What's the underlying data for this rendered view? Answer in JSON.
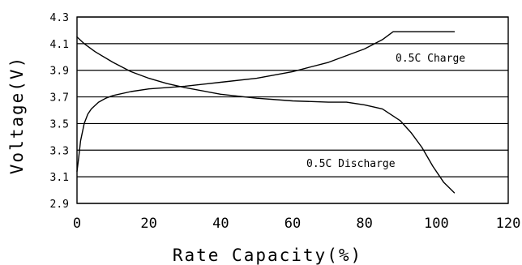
{
  "chart_data": {
    "type": "line",
    "xlabel": "Rate Capacity(%)",
    "ylabel": "Voltage(V)",
    "xlim": [
      0,
      120
    ],
    "ylim": [
      2.9,
      4.3
    ],
    "xticks": [
      "0",
      "20",
      "40",
      "60",
      "80",
      "100",
      "120"
    ],
    "yticks": [
      "4.3",
      "4.1",
      "3.9",
      "3.7",
      "3.5",
      "3.3",
      "3.1",
      "2.9"
    ],
    "grid": "horizontal",
    "series": [
      {
        "name": "0.5C Charge",
        "x": [
          0,
          0.5,
          1,
          2,
          3,
          4,
          6,
          8,
          10,
          15,
          20,
          30,
          40,
          50,
          60,
          70,
          80,
          85,
          88,
          95,
          100,
          105
        ],
        "y": [
          3.14,
          3.25,
          3.37,
          3.5,
          3.57,
          3.61,
          3.66,
          3.69,
          3.71,
          3.74,
          3.76,
          3.78,
          3.81,
          3.84,
          3.89,
          3.96,
          4.06,
          4.13,
          4.19,
          4.19,
          4.19,
          4.19
        ]
      },
      {
        "name": "0.5C Discharge",
        "x": [
          0,
          2,
          5,
          10,
          15,
          20,
          25,
          30,
          40,
          50,
          60,
          70,
          75,
          80,
          85,
          90,
          93,
          96,
          99,
          102,
          105
        ],
        "y": [
          4.15,
          4.1,
          4.04,
          3.96,
          3.89,
          3.84,
          3.8,
          3.77,
          3.72,
          3.69,
          3.67,
          3.66,
          3.66,
          3.64,
          3.61,
          3.52,
          3.43,
          3.32,
          3.18,
          3.06,
          2.98
        ]
      }
    ]
  }
}
